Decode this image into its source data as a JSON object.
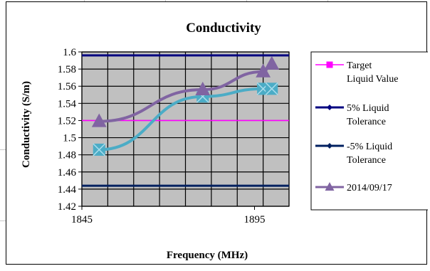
{
  "chart_data": {
    "type": "line",
    "title": "Conductivity",
    "xlabel": "Frequency (MHz)",
    "ylabel": "Conductivity (S/m)",
    "xlim": [
      1845,
      1905
    ],
    "ylim": [
      1.42,
      1.6
    ],
    "x_ticks": [
      1845,
      1895
    ],
    "y_ticks": [
      1.42,
      1.44,
      1.46,
      1.48,
      1.5,
      1.52,
      1.54,
      1.56,
      1.58,
      1.6
    ],
    "y_tick_labels": [
      "1.42",
      "1.44",
      "1.46",
      "1.48",
      "1.5",
      "1.52",
      "1.54",
      "1.56",
      "1.58",
      "1.6"
    ],
    "x_tick_labels": [
      "1845",
      "1895"
    ],
    "grid": true,
    "legend_position": "right",
    "plot_background": "#c0c0c0",
    "series": [
      {
        "name": "Target Liquid Value",
        "legend_lines": [
          "Target",
          "Liquid Value"
        ],
        "color": "#ff00ff",
        "marker": "square",
        "style": "horizontal",
        "y": 1.52
      },
      {
        "name": "5% Liquid Tolerance",
        "legend_lines": [
          "5% Liquid",
          "Tolerance"
        ],
        "color": "#000080",
        "marker": "diamond",
        "style": "horizontal",
        "y": 1.596
      },
      {
        "name": "-5% Liquid Tolerance",
        "legend_lines": [
          "-5% Liquid",
          "Tolerance"
        ],
        "color": "#002060",
        "marker": "diamond",
        "style": "horizontal",
        "y": 1.444
      },
      {
        "name": "",
        "color": "#4bacc6",
        "marker": "square-x",
        "style": "points",
        "x": [
          1850,
          1880,
          1897.5,
          1900
        ],
        "y": [
          1.486,
          1.548,
          1.557,
          1.557
        ]
      },
      {
        "name": "2014/09/17",
        "legend_lines": [
          "2014/09/17"
        ],
        "color": "#8064a2",
        "marker": "triangle",
        "style": "points",
        "x": [
          1850,
          1880,
          1897.5,
          1900
        ],
        "y": [
          1.519,
          1.556,
          1.577,
          1.586
        ]
      }
    ]
  }
}
